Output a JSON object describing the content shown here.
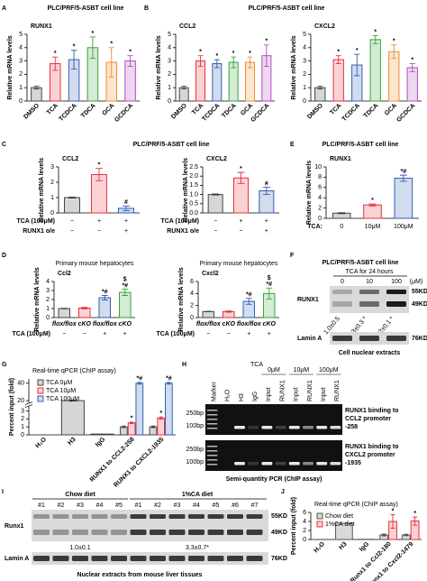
{
  "chart_data": [
    {
      "type": "bar",
      "title": "RUNX1",
      "ylabel": "Relative mRNA levels",
      "categories": [
        "DMSO",
        "TCA",
        "TCDCA",
        "TDCA",
        "GCA",
        "GCDCA"
      ],
      "values": [
        1,
        2.8,
        3.1,
        4.0,
        2.9,
        3.0
      ],
      "errors": [
        0.1,
        0.5,
        0.7,
        0.8,
        1.1,
        0.4
      ],
      "colors": [
        "#444444",
        "#e8303a",
        "#2f5fb3",
        "#3aa33a",
        "#f08c2a",
        "#b04bc0"
      ],
      "ylim": [
        0,
        5
      ],
      "yticks": [
        0,
        1,
        2,
        3,
        4,
        5
      ],
      "annotations": [
        {
          "index": 1,
          "text": "*"
        },
        {
          "index": 2,
          "text": "*"
        },
        {
          "index": 3,
          "text": "*"
        },
        {
          "index": 4,
          "text": "*"
        },
        {
          "index": 5,
          "text": "*"
        }
      ]
    },
    {
      "type": "bar",
      "title": "CCL2",
      "ylabel": "Relative mRNA levels",
      "categories": [
        "DMSO",
        "TCA",
        "TCDCA",
        "TDCA",
        "GCA",
        "GCDCA"
      ],
      "values": [
        1,
        3.0,
        2.8,
        2.9,
        2.9,
        3.4
      ],
      "errors": [
        0.1,
        0.4,
        0.3,
        0.4,
        0.4,
        0.8
      ],
      "colors": [
        "#444444",
        "#e8303a",
        "#2f5fb3",
        "#3aa33a",
        "#f08c2a",
        "#b04bc0"
      ],
      "ylim": [
        0,
        5
      ],
      "yticks": [
        0,
        1,
        2,
        3,
        4,
        5
      ],
      "annotations": [
        {
          "index": 1,
          "text": "*"
        },
        {
          "index": 2,
          "text": "*"
        },
        {
          "index": 3,
          "text": "*"
        },
        {
          "index": 4,
          "text": "*"
        },
        {
          "index": 5,
          "text": "*"
        }
      ]
    },
    {
      "type": "bar",
      "title": "CXCL2",
      "ylabel": "Relative mRNA levels",
      "categories": [
        "DMSO",
        "TCA",
        "TCDCA",
        "TDCA",
        "GCA",
        "GCDCA"
      ],
      "values": [
        1,
        3.1,
        2.7,
        4.6,
        3.7,
        2.5
      ],
      "errors": [
        0.1,
        0.3,
        0.8,
        0.3,
        0.5,
        0.3
      ],
      "colors": [
        "#444444",
        "#e8303a",
        "#2f5fb3",
        "#3aa33a",
        "#f08c2a",
        "#b04bc0"
      ],
      "ylim": [
        0,
        5
      ],
      "yticks": [
        0,
        1,
        2,
        3,
        4,
        5
      ],
      "annotations": [
        {
          "index": 1,
          "text": "*"
        },
        {
          "index": 2,
          "text": "*"
        },
        {
          "index": 3,
          "text": "*"
        },
        {
          "index": 4,
          "text": "*"
        },
        {
          "index": 5,
          "text": "*"
        }
      ]
    },
    {
      "type": "bar",
      "title": "CCL2",
      "ylabel": "Relative mRNA levels",
      "values": [
        1,
        2.5,
        0.3
      ],
      "errors": [
        0.03,
        0.4,
        0.15
      ],
      "colors": [
        "#444444",
        "#e8303a",
        "#2f5fb3"
      ],
      "ylim": [
        0,
        3
      ],
      "yticks": [
        0,
        1,
        2,
        3
      ],
      "rows": [
        {
          "label": "TCA (100μM)",
          "values": [
            "−",
            "+",
            "+"
          ]
        },
        {
          "label": "RUNX1 o/e",
          "values": [
            "−",
            "−",
            "+"
          ]
        }
      ],
      "annotations": [
        {
          "index": 1,
          "text": "*"
        },
        {
          "index": 2,
          "text": "#"
        }
      ]
    },
    {
      "type": "bar",
      "title": "CXCL2",
      "ylabel": "Relative mRNA levels",
      "values": [
        1,
        1.9,
        1.2
      ],
      "errors": [
        0.03,
        0.3,
        0.2
      ],
      "colors": [
        "#444444",
        "#e8303a",
        "#2f5fb3"
      ],
      "ylim": [
        0,
        2.5
      ],
      "yticks": [
        {
          "value": 0,
          "label": "0.0"
        },
        0.5,
        {
          "value": 1,
          "label": "1.0"
        },
        1.5,
        {
          "value": 2,
          "label": "2.0"
        },
        2.5
      ],
      "rows": [
        {
          "label": "TCA (100μM)",
          "values": [
            "−",
            "+",
            "+"
          ]
        },
        {
          "label": "RUNX1 o/e",
          "values": [
            "−",
            "−",
            "+"
          ]
        }
      ],
      "annotations": [
        {
          "index": 1,
          "text": "*"
        },
        {
          "index": 2,
          "text": "#"
        }
      ]
    },
    {
      "type": "bar",
      "title": "RUNX1",
      "ylabel": "Relative mRNA levels",
      "values": [
        1,
        2.6,
        7.8
      ],
      "errors": [
        0.1,
        0.2,
        0.6
      ],
      "colors": [
        "#444444",
        "#e8303a",
        "#2f5fb3"
      ],
      "ylim": [
        0,
        10
      ],
      "yticks": [
        0,
        2,
        4,
        6,
        8,
        10
      ],
      "rows": [
        {
          "label": "TCA:",
          "values": [
            "0",
            "10μM",
            "100μM"
          ]
        }
      ],
      "annotations": [
        {
          "index": 1,
          "text": "*"
        },
        {
          "index": 2,
          "text": "*#"
        }
      ]
    },
    {
      "type": "bar",
      "title": "Ccl2",
      "ylabel": "Relative mRNA levels",
      "categories": [
        "flox/flox",
        "cKO",
        "flox/flox",
        "cKO"
      ],
      "values": [
        1,
        1.05,
        2.2,
        2.8
      ],
      "errors": [
        0.03,
        0.08,
        0.25,
        0.35
      ],
      "colors": [
        "#444444",
        "#e8303a",
        "#2f5fb3",
        "#3aa33a"
      ],
      "ylim": [
        0,
        4
      ],
      "yticks": [
        0,
        1,
        2,
        3,
        4
      ],
      "rows": [
        {
          "label": "TCA (100μM)",
          "values": [
            "−",
            "−",
            "+",
            "+"
          ]
        }
      ],
      "annotations": [
        {
          "index": 2,
          "text": "*#"
        },
        {
          "index": 3,
          "text": "*#"
        },
        {
          "index": 3,
          "text": "$"
        }
      ]
    },
    {
      "type": "bar",
      "title": "Cxcl2",
      "ylabel": "Relative mRNA levels",
      "categories": [
        "flox/flox",
        "cKO",
        "flox/flox",
        "cKO"
      ],
      "values": [
        1,
        1.0,
        2.7,
        4.0
      ],
      "errors": [
        0.03,
        0.1,
        0.5,
        0.9
      ],
      "colors": [
        "#444444",
        "#e8303a",
        "#2f5fb3",
        "#3aa33a"
      ],
      "ylim": [
        0,
        6
      ],
      "yticks": [
        0,
        2,
        4,
        6
      ],
      "rows": [
        {
          "label": "TCA (100μM)",
          "values": [
            "−",
            "−",
            "+",
            "+"
          ]
        }
      ],
      "annotations": [
        {
          "index": 2,
          "text": "*#"
        },
        {
          "index": 3,
          "text": "*#"
        },
        {
          "index": 3,
          "text": "$"
        }
      ]
    },
    {
      "type": "bar",
      "title": "Real-time qPCR (ChIP assay)",
      "ylabel": "Percent input (fold)",
      "categories": [
        "H₂O",
        "H3",
        "IgG",
        "RUNX1 to CCL2-258",
        "RUNX1 to CXCL2-1935"
      ],
      "series": [
        {
          "name": "TCA 0μM",
          "color": "#444444",
          "values": [
            0,
            20,
            0.1,
            1.0,
            1.0
          ],
          "errors": [
            null,
            0.5,
            null,
            0.1,
            0.1
          ]
        },
        {
          "name": "TCA 10μM",
          "color": "#e8303a",
          "values": [
            null,
            null,
            null,
            1.5,
            2.1
          ],
          "errors": [
            null,
            null,
            null,
            0.1,
            0.15
          ]
        },
        {
          "name": "TCA 100μM",
          "color": "#2f5fb3",
          "values": [
            null,
            null,
            null,
            40,
            40
          ],
          "errors": [
            null,
            null,
            null,
            1,
            1
          ]
        }
      ],
      "ylim": [
        0,
        45
      ],
      "yticks": [
        0,
        1,
        2,
        3,
        20,
        40
      ],
      "ybreak": [
        3.5,
        18
      ],
      "annotations": [
        {
          "index": 3,
          "series": 1,
          "text": "*"
        },
        {
          "index": 3,
          "series": 2,
          "text": "*#"
        },
        {
          "index": 4,
          "series": 1,
          "text": "*"
        },
        {
          "index": 4,
          "series": 2,
          "text": "*#"
        }
      ]
    },
    {
      "type": "bar",
      "title": "Real-time qPCR (ChIP assay)",
      "ylabel": "Percent input (fold)",
      "categories": [
        "H₂O",
        "H3",
        "IgG",
        "Runx1 to Ccl2-180",
        "Runx1 to Cxcl2-1479"
      ],
      "series": [
        {
          "name": "Chow diet",
          "color": "#555555",
          "values": [
            0,
            3.6,
            0.05,
            1.0,
            1.0
          ],
          "errors": [
            null,
            null,
            null,
            0.2,
            0.15
          ]
        },
        {
          "name": "1%CA diet",
          "color": "#e8303a",
          "values": [
            null,
            null,
            null,
            4.0,
            4.1
          ],
          "errors": [
            null,
            null,
            null,
            1.5,
            0.9
          ]
        }
      ],
      "ylim": [
        0,
        6
      ],
      "yticks": [
        0,
        2,
        4,
        6
      ],
      "annotations": [
        {
          "index": 3,
          "series": 1,
          "text": "*"
        },
        {
          "index": 4,
          "series": 1,
          "text": "*"
        }
      ]
    }
  ],
  "figure": {
    "letters": [
      "A",
      "B",
      "C",
      "D",
      "E",
      "F",
      "G",
      "H",
      "I",
      "J"
    ],
    "cell_line": "PLC/PRF/5-ASBT cell line",
    "hepatocytes": "Primary mouse hepatocytes",
    "F": {
      "treatment": "TCA for 24 hours",
      "doses": [
        "0",
        "10",
        "100"
      ],
      "unit": "(μM)",
      "rows": [
        "RUNX1",
        "Lamin A"
      ],
      "sizes": [
        "55KD",
        "49KD",
        "76KD"
      ],
      "quant": [
        "1.0±0.5",
        "2.3±0.3 *",
        "5.2±0.1 *"
      ],
      "caption": "Cell nuclear extracts"
    },
    "H": {
      "treatment": "TCA",
      "doses": [
        "0μM",
        "10μM",
        "100μM"
      ],
      "lanes": [
        "Marker",
        "H₂O",
        "H3",
        "IgG",
        "Input",
        "RUNX1",
        "Input",
        "RUNX1",
        "Input",
        "RUNX1"
      ],
      "sizes": [
        "250bp",
        "100bp"
      ],
      "captions": [
        [
          "RUNX1 binding to",
          "CCL2 promoter",
          "-258"
        ],
        [
          "RUNX1 binding to",
          "CXCL2 promoter",
          "-1935"
        ]
      ],
      "caption": "Semi-quantity PCR (ChIP assay)"
    },
    "I": {
      "groups": [
        "Chow diet",
        "1%CA diet"
      ],
      "lanes": [
        "#1",
        "#2",
        "#3",
        "#4",
        "#5",
        "#1",
        "#2",
        "#3",
        "#4",
        "#5",
        "#6",
        "#7"
      ],
      "rows": [
        "Runx1",
        "Lamin A"
      ],
      "sizes": [
        "55KD",
        "49KD",
        "76KD"
      ],
      "quant": [
        "1.0±0.1",
        "3.3±0.7*"
      ],
      "caption": "Nuclear extracts from mouse liver tissues"
    }
  }
}
